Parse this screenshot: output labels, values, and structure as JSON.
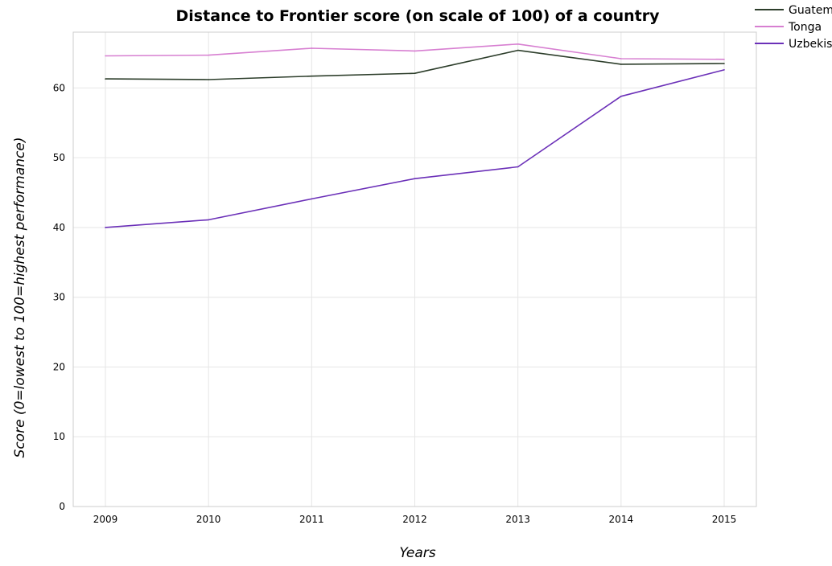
{
  "chart_data": {
    "type": "line",
    "title": "Distance to Frontier score (on scale of 100) of a country",
    "xlabel": "Years",
    "ylabel": "Score (0=lowest to 100=highest performance)",
    "x": [
      "2009",
      "2010",
      "2011",
      "2012",
      "2013",
      "2014",
      "2015"
    ],
    "ylim": [
      0,
      68
    ],
    "yticks": [
      0,
      10,
      20,
      30,
      40,
      50,
      60
    ],
    "grid": true,
    "legend_position": "top-right",
    "series": [
      {
        "name": "Guatemala",
        "color": "#2d3e2b",
        "values": [
          61.3,
          61.2,
          61.7,
          62.1,
          65.4,
          63.4,
          63.5
        ]
      },
      {
        "name": "Tonga",
        "color": "#d77fd1",
        "values": [
          64.6,
          64.7,
          65.7,
          65.3,
          66.3,
          64.2,
          64.1
        ]
      },
      {
        "name": "Uzbekistan",
        "color": "#6b30b8",
        "values": [
          40.0,
          41.1,
          44.1,
          47.0,
          48.7,
          58.8,
          62.6
        ]
      }
    ]
  }
}
